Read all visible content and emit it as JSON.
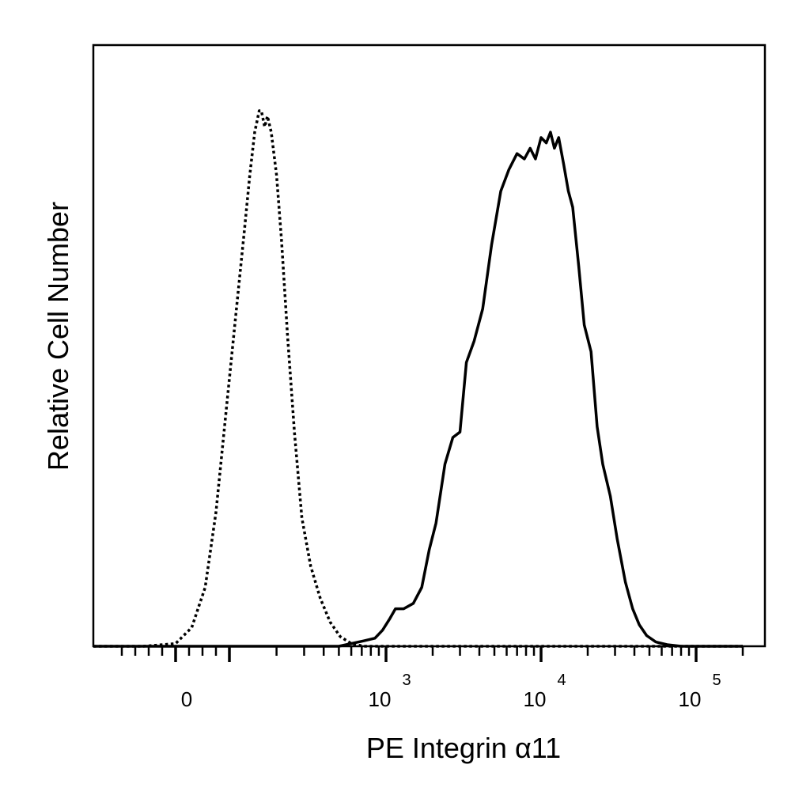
{
  "chart_data": {
    "type": "line",
    "title": "",
    "xlabel": "PE Integrin α11",
    "ylabel": "Relative Cell Number",
    "x_scale": "biexponential",
    "xlim": [
      -300,
      200000
    ],
    "ylim": [
      0,
      1.05
    ],
    "grid": false,
    "legend": "none",
    "x_ticks": [
      {
        "value": 0,
        "base": "0",
        "exp": ""
      },
      {
        "value": 1000,
        "base": "10",
        "exp": "3"
      },
      {
        "value": 10000,
        "base": "10",
        "exp": "4"
      },
      {
        "value": 100000,
        "base": "10",
        "exp": "5"
      }
    ],
    "series": [
      {
        "style": "dotted",
        "color": "#000000",
        "x": [
          -300,
          -60,
          0,
          30,
          55,
          75,
          95,
          110,
          125,
          135,
          145,
          155,
          160,
          168,
          175,
          185,
          200,
          215,
          235,
          260,
          290,
          330,
          380,
          440,
          510,
          600,
          720,
          900,
          1500,
          200000
        ],
        "y": [
          0,
          0,
          0.005,
          0.035,
          0.11,
          0.25,
          0.45,
          0.62,
          0.78,
          0.88,
          0.96,
          1.0,
          1.0,
          0.97,
          0.99,
          0.96,
          0.88,
          0.76,
          0.58,
          0.4,
          0.24,
          0.15,
          0.09,
          0.045,
          0.018,
          0.005,
          0,
          0,
          0,
          0
        ]
      },
      {
        "style": "solid",
        "color": "#000000",
        "x": [
          -300,
          500,
          600,
          720,
          850,
          950,
          1050,
          1150,
          1300,
          1500,
          1700,
          1900,
          2100,
          2400,
          2700,
          3000,
          3300,
          3700,
          4200,
          4800,
          5500,
          6200,
          7000,
          7800,
          8500,
          9200,
          10000,
          10800,
          11500,
          12200,
          13000,
          14000,
          15000,
          16000,
          17500,
          19000,
          21000,
          23000,
          25000,
          28000,
          31000,
          35000,
          39000,
          43000,
          48000,
          55000,
          65000,
          80000,
          100000,
          200000
        ],
        "y": [
          0,
          0,
          0.005,
          0.01,
          0.015,
          0.03,
          0.05,
          0.07,
          0.07,
          0.08,
          0.11,
          0.18,
          0.23,
          0.34,
          0.39,
          0.4,
          0.53,
          0.57,
          0.63,
          0.75,
          0.85,
          0.89,
          0.92,
          0.91,
          0.93,
          0.91,
          0.95,
          0.94,
          0.96,
          0.93,
          0.95,
          0.9,
          0.85,
          0.82,
          0.71,
          0.6,
          0.55,
          0.41,
          0.34,
          0.28,
          0.2,
          0.12,
          0.07,
          0.04,
          0.02,
          0.008,
          0.003,
          0,
          0,
          0
        ]
      }
    ]
  }
}
